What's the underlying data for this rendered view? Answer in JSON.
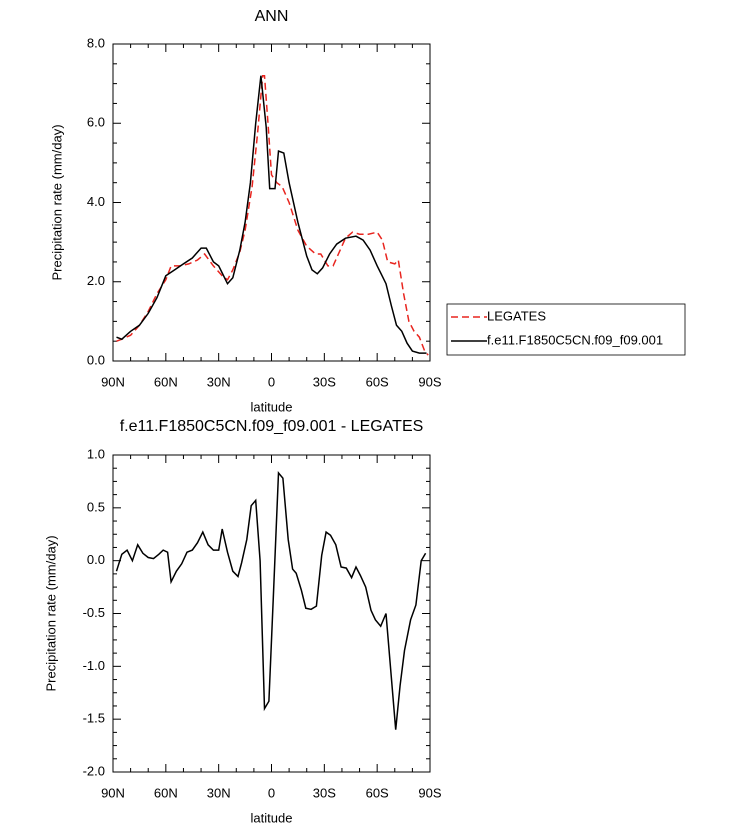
{
  "chart_data": [
    {
      "type": "line",
      "title": "ANN",
      "xlabel": "latitude",
      "ylabel": "Precipitation rate (mm/day)",
      "xlim": [
        90,
        -90
      ],
      "xticks": [
        {
          "value": 90,
          "label": "90N"
        },
        {
          "value": 60,
          "label": "60N"
        },
        {
          "value": 30,
          "label": "30N"
        },
        0,
        {
          "value": -30,
          "label": "30S"
        },
        {
          "value": -60,
          "label": "60S"
        },
        {
          "value": -90,
          "label": "90S"
        }
      ],
      "ylim": [
        0,
        8
      ],
      "yticks": [
        {
          "value": 0,
          "label": "0.0"
        },
        {
          "value": 2,
          "label": "2.0"
        },
        {
          "value": 4,
          "label": "4.0"
        },
        {
          "value": 6,
          "label": "6.0"
        },
        {
          "value": 8,
          "label": "8.0"
        }
      ],
      "legend": "outside-right",
      "series": [
        {
          "name": "LEGATES",
          "color": "#e8251f",
          "dashed": true,
          "x": [
            88,
            85,
            80,
            75,
            70,
            65,
            60,
            57,
            52,
            47,
            42,
            38,
            33,
            28,
            25,
            22,
            18,
            15,
            11,
            8,
            5,
            4,
            2,
            0,
            -3,
            -6,
            -10,
            -15,
            -20,
            -25,
            -28,
            -32,
            -35,
            -38,
            -42,
            -46,
            -50,
            -55,
            -60,
            -63,
            -66,
            -70,
            -72,
            -75,
            -78,
            -81,
            -84,
            -87,
            -89
          ],
          "values": [
            0.5,
            0.55,
            0.65,
            0.9,
            1.25,
            1.7,
            2.05,
            2.4,
            2.4,
            2.45,
            2.55,
            2.7,
            2.4,
            2.15,
            2.05,
            2.3,
            2.75,
            3.3,
            4.4,
            5.7,
            7.2,
            7.2,
            6.0,
            4.7,
            4.5,
            4.4,
            4.0,
            3.3,
            2.9,
            2.7,
            2.7,
            2.4,
            2.4,
            2.7,
            3.1,
            3.25,
            3.2,
            3.2,
            3.25,
            3.05,
            2.5,
            2.45,
            2.55,
            1.7,
            1.0,
            0.75,
            0.6,
            0.25,
            0.15
          ]
        },
        {
          "name": "f.e11.F1850C5CN.f09_f09.001",
          "color": "#000000",
          "dashed": false,
          "x": [
            88,
            85,
            80,
            75,
            70,
            65,
            60,
            55,
            50,
            45,
            40,
            37,
            33,
            30,
            25,
            22,
            18,
            15,
            12,
            9,
            6,
            3,
            1,
            -2,
            -4,
            -7,
            -10,
            -15,
            -20,
            -23,
            -26,
            -29,
            -33,
            -37,
            -42,
            -48,
            -52,
            -56,
            -60,
            -65,
            -68,
            -71,
            -74,
            -77,
            -80,
            -84,
            -88
          ],
          "values": [
            0.6,
            0.55,
            0.75,
            0.9,
            1.2,
            1.6,
            2.15,
            2.3,
            2.45,
            2.6,
            2.85,
            2.85,
            2.5,
            2.4,
            1.95,
            2.1,
            2.8,
            3.5,
            4.5,
            6.0,
            7.2,
            5.9,
            4.35,
            4.35,
            5.3,
            5.25,
            4.5,
            3.5,
            2.65,
            2.3,
            2.2,
            2.35,
            2.7,
            2.95,
            3.1,
            3.15,
            3.05,
            2.8,
            2.4,
            1.95,
            1.4,
            0.9,
            0.75,
            0.45,
            0.25,
            0.2,
            0.2
          ]
        }
      ]
    },
    {
      "type": "line",
      "title": "f.e11.F1850C5CN.f09_f09.001 - LEGATES",
      "xlabel": "latitude",
      "ylabel": "Precipitation rate (mm/day)",
      "xlim": [
        90,
        -90
      ],
      "xticks": [
        {
          "value": 90,
          "label": "90N"
        },
        {
          "value": 60,
          "label": "60N"
        },
        {
          "value": 30,
          "label": "30N"
        },
        0,
        {
          "value": -30,
          "label": "30S"
        },
        {
          "value": -60,
          "label": "60S"
        },
        {
          "value": -90,
          "label": "90S"
        }
      ],
      "ylim": [
        -2,
        1
      ],
      "yticks": [
        {
          "value": -2,
          "label": "-2.0"
        },
        -1.5,
        {
          "value": -1,
          "label": "-1.0"
        },
        -0.5,
        {
          "value": 0,
          "label": "0.0"
        },
        0.5,
        {
          "value": 1,
          "label": "1.0"
        }
      ],
      "series": [
        {
          "color": "#000000",
          "dashed": false,
          "x": [
            88,
            85,
            82,
            79,
            76,
            73,
            70,
            67,
            64,
            61.5,
            59,
            57,
            54,
            51,
            48,
            45,
            42,
            39,
            36,
            33,
            30,
            28,
            25,
            22,
            19,
            17,
            14,
            11.5,
            9,
            6.5,
            4,
            1.5,
            -1,
            -4,
            -6.5,
            -9.5,
            -12,
            -14,
            -17,
            -19.5,
            -22.5,
            -25.5,
            -28.5,
            -31,
            -33.5,
            -36.5,
            -39.5,
            -42.5,
            -45.5,
            -48,
            -50.5,
            -53.5,
            -56.5,
            -59,
            -62,
            -65,
            -68,
            -70.5,
            -73,
            -75.5,
            -79,
            -82,
            -85,
            -87.5
          ],
          "values": [
            -0.1,
            0.06,
            0.1,
            0.0,
            0.15,
            0.07,
            0.03,
            0.02,
            0.06,
            0.1,
            0.08,
            -0.2,
            -0.1,
            -0.03,
            0.08,
            0.1,
            0.17,
            0.27,
            0.15,
            0.1,
            0.1,
            0.3,
            0.08,
            -0.1,
            -0.15,
            -0.02,
            0.2,
            0.52,
            0.57,
            0.0,
            -1.4,
            -1.33,
            -0.35,
            0.83,
            0.78,
            0.2,
            -0.08,
            -0.12,
            -0.28,
            -0.45,
            -0.46,
            -0.43,
            0.05,
            0.27,
            0.24,
            0.15,
            -0.06,
            -0.07,
            -0.16,
            -0.06,
            -0.14,
            -0.25,
            -0.47,
            -0.56,
            -0.62,
            -0.5,
            -1.1,
            -1.6,
            -1.18,
            -0.85,
            -0.56,
            -0.42,
            0.0,
            0.07
          ]
        }
      ]
    }
  ]
}
